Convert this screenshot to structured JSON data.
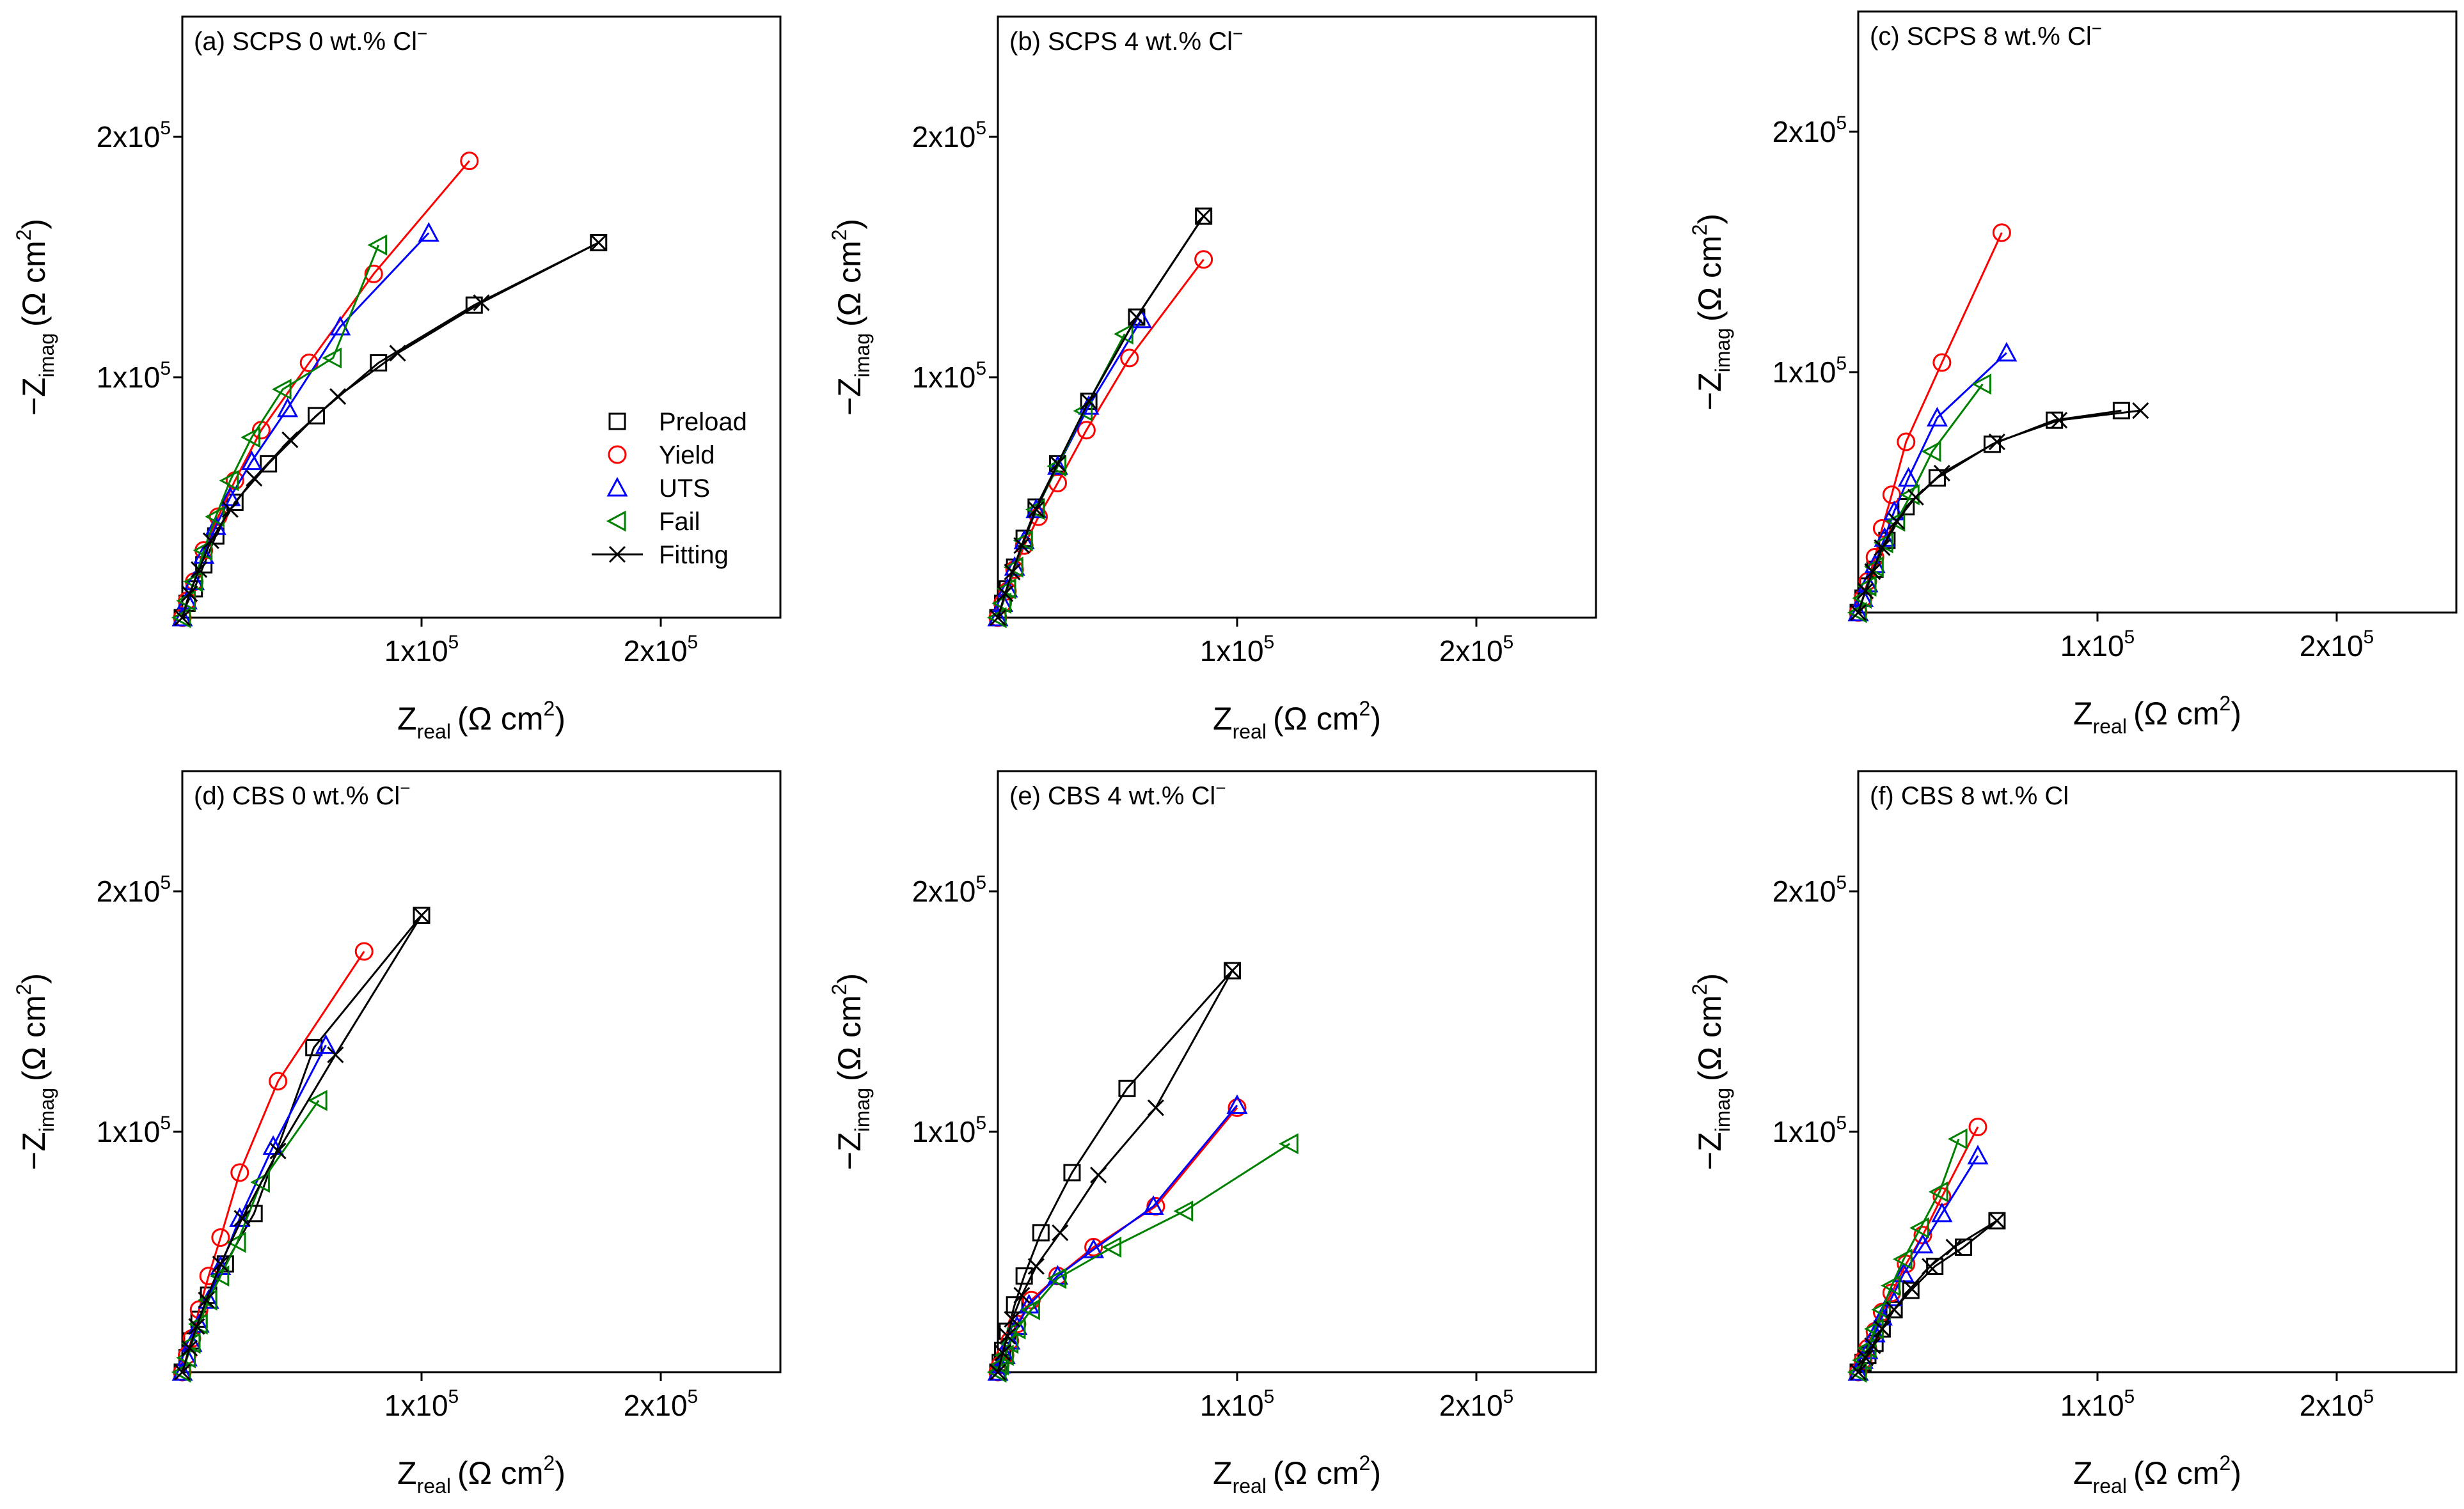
{
  "colors": {
    "Preload": "#000000",
    "Yield": "#ff0000",
    "UTS": "#0000ff",
    "Fail": "#008000",
    "Fitting": "#000000"
  },
  "legend": [
    "Preload",
    "Yield",
    "UTS",
    "Fail",
    "Fitting"
  ],
  "axis_labels": {
    "x": {
      "symbol": "Z",
      "sub": "real",
      "unit": "(Ω cm",
      "sup": "2",
      "close": ")"
    },
    "y": {
      "symbol": "−Z",
      "sub": "imag",
      "unit": "(Ω cm",
      "sup": "2",
      "close": ")"
    }
  },
  "tick_labels": {
    "1e5": {
      "base": "1x10",
      "exp": "5"
    },
    "2e5": {
      "base": "2x10",
      "exp": "5"
    }
  },
  "chart_data": [
    {
      "type": "scatter",
      "title": "(a) SCPS 0 wt.% Cl",
      "title_sup": "−",
      "xlim": [
        0,
        250000
      ],
      "ylim": [
        0,
        250000
      ],
      "show_legend": true,
      "legend_position": "right",
      "series": [
        {
          "name": "Preload",
          "x": [
            0,
            2000,
            5000,
            9000,
            14000,
            22000,
            36000,
            56000,
            82000,
            122000,
            174000
          ],
          "y": [
            0,
            6000,
            12000,
            22000,
            34000,
            48000,
            64000,
            84000,
            106000,
            130000,
            156000
          ]
        },
        {
          "name": "Yield",
          "x": [
            0,
            2000,
            5000,
            9000,
            15000,
            22000,
            33000,
            53000,
            80000,
            120000
          ],
          "y": [
            0,
            7000,
            15000,
            28000,
            42000,
            57000,
            78000,
            106000,
            143000,
            190000
          ]
        },
        {
          "name": "UTS",
          "x": [
            0,
            2000,
            5000,
            9000,
            14000,
            20000,
            29000,
            44000,
            66000,
            103000
          ],
          "y": [
            0,
            7000,
            15000,
            26000,
            38000,
            50000,
            65000,
            87000,
            121000,
            160000
          ]
        },
        {
          "name": "Fail",
          "x": [
            0,
            2000,
            5000,
            9000,
            14000,
            20000,
            29000,
            42000,
            63000,
            82000
          ],
          "y": [
            0,
            7000,
            15000,
            28000,
            42000,
            57000,
            75000,
            95000,
            108000,
            155000
          ]
        },
        {
          "name": "Fitting",
          "x": [
            0,
            3000,
            7000,
            12000,
            20000,
            30000,
            45000,
            65000,
            90000,
            125000,
            174000
          ],
          "y": [
            0,
            10000,
            20000,
            32000,
            45000,
            58000,
            74000,
            92000,
            110000,
            131000,
            156000
          ]
        }
      ]
    },
    {
      "type": "scatter",
      "title": "(b) SCPS 4 wt.% Cl",
      "title_sup": "−",
      "xlim": [
        0,
        250000
      ],
      "ylim": [
        0,
        250000
      ],
      "show_legend": false,
      "series": [
        {
          "name": "Preload",
          "x": [
            0,
            2000,
            4000,
            7000,
            11000,
            16000,
            25000,
            38000,
            58000,
            86000
          ],
          "y": [
            0,
            6000,
            12000,
            21000,
            33000,
            46000,
            64000,
            90000,
            125000,
            167000
          ]
        },
        {
          "name": "Yield",
          "x": [
            0,
            2000,
            4000,
            7000,
            11000,
            17000,
            25000,
            37000,
            55000,
            86000
          ],
          "y": [
            0,
            6000,
            11000,
            20000,
            30000,
            42000,
            56000,
            78000,
            108000,
            149000
          ]
        },
        {
          "name": "UTS",
          "x": [
            0,
            2000,
            4000,
            7000,
            11000,
            16000,
            25000,
            38000,
            60000
          ],
          "y": [
            0,
            6000,
            12000,
            21000,
            32000,
            45000,
            63000,
            88000,
            124000
          ]
        },
        {
          "name": "Fail",
          "x": [
            0,
            2000,
            4000,
            7000,
            11000,
            16000,
            25000,
            36000,
            53000
          ],
          "y": [
            0,
            6000,
            12000,
            21000,
            32000,
            45000,
            63000,
            86000,
            118000
          ]
        },
        {
          "name": "Fitting",
          "x": [
            0,
            3000,
            6000,
            10000,
            16000,
            25000,
            38000,
            58000,
            86000
          ],
          "y": [
            0,
            10000,
            19000,
            30000,
            45000,
            64000,
            90000,
            125000,
            167000
          ]
        }
      ]
    },
    {
      "type": "scatter",
      "title": "(c) SCPS 8 wt.% Cl",
      "title_sup": "−",
      "xlim": [
        0,
        250000
      ],
      "ylim": [
        0,
        250000
      ],
      "show_legend": false,
      "series": [
        {
          "name": "Preload",
          "x": [
            0,
            2000,
            4000,
            7000,
            12000,
            20000,
            33000,
            56000,
            82000,
            110000
          ],
          "y": [
            0,
            6000,
            11000,
            18000,
            30000,
            44000,
            56000,
            70000,
            80000,
            84000
          ]
        },
        {
          "name": "Yield",
          "x": [
            0,
            2000,
            4000,
            7000,
            10000,
            14000,
            20000,
            35000,
            60000
          ],
          "y": [
            0,
            6000,
            13000,
            23000,
            35000,
            49000,
            71000,
            104000,
            158000
          ]
        },
        {
          "name": "UTS",
          "x": [
            0,
            2000,
            4000,
            7000,
            11000,
            15000,
            21000,
            33000,
            62000
          ],
          "y": [
            0,
            6000,
            12000,
            20000,
            31000,
            42000,
            56000,
            81000,
            108000
          ]
        },
        {
          "name": "Fail",
          "x": [
            0,
            2000,
            4000,
            7000,
            11000,
            16000,
            22000,
            31000,
            52000
          ],
          "y": [
            0,
            6000,
            11000,
            19000,
            29000,
            38000,
            49000,
            67000,
            95000
          ]
        },
        {
          "name": "Fitting",
          "x": [
            0,
            3000,
            6000,
            10000,
            16000,
            24000,
            35000,
            58000,
            84000,
            118000
          ],
          "y": [
            0,
            9000,
            17000,
            27000,
            38000,
            48000,
            58000,
            71000,
            80000,
            84000
          ]
        }
      ]
    },
    {
      "type": "scatter",
      "title": "(d) CBS 0 wt.% Cl",
      "title_sup": "−",
      "xlim": [
        0,
        250000
      ],
      "ylim": [
        0,
        250000
      ],
      "show_legend": false,
      "series": [
        {
          "name": "Preload",
          "x": [
            0,
            2000,
            4000,
            7000,
            11000,
            18000,
            30000,
            55000,
            100000
          ],
          "y": [
            0,
            6000,
            13000,
            22000,
            32000,
            45000,
            66000,
            135000,
            190000
          ]
        },
        {
          "name": "Yield",
          "x": [
            0,
            2000,
            4000,
            7000,
            11000,
            16000,
            24000,
            40000,
            76000
          ],
          "y": [
            0,
            7000,
            14000,
            26000,
            40000,
            56000,
            83000,
            121000,
            175000
          ]
        },
        {
          "name": "UTS",
          "x": [
            0,
            2000,
            4000,
            7000,
            11000,
            16000,
            24000,
            38000,
            60000
          ],
          "y": [
            0,
            6000,
            12000,
            20000,
            30000,
            44000,
            64000,
            94000,
            136000
          ]
        },
        {
          "name": "Fail",
          "x": [
            0,
            2000,
            4000,
            7000,
            11000,
            16000,
            23000,
            33000,
            57000
          ],
          "y": [
            0,
            6000,
            12000,
            20000,
            30000,
            40000,
            54000,
            79000,
            113000
          ]
        },
        {
          "name": "Fitting",
          "x": [
            0,
            3000,
            6000,
            10000,
            16000,
            25000,
            40000,
            64000,
            100000
          ],
          "y": [
            0,
            10000,
            19000,
            30000,
            45000,
            64000,
            92000,
            132000,
            190000
          ]
        }
      ]
    },
    {
      "type": "scatter",
      "title": "(e) CBS 4 wt.% Cl",
      "title_sup": "−",
      "xlim": [
        0,
        250000
      ],
      "ylim": [
        0,
        250000
      ],
      "show_legend": false,
      "series": [
        {
          "name": "Preload",
          "x": [
            0,
            1000,
            2000,
            4000,
            7000,
            11000,
            18000,
            31000,
            54000,
            98000
          ],
          "y": [
            0,
            4000,
            9000,
            17000,
            28000,
            40000,
            58000,
            83000,
            118000,
            167000
          ]
        },
        {
          "name": "Yield",
          "x": [
            0,
            1000,
            3000,
            5000,
            8000,
            14000,
            25000,
            40000,
            66000,
            100000
          ],
          "y": [
            0,
            3000,
            7000,
            13000,
            20000,
            30000,
            40000,
            52000,
            69000,
            110000
          ]
        },
        {
          "name": "UTS",
          "x": [
            0,
            1000,
            3000,
            5000,
            8000,
            13000,
            25000,
            40000,
            65000,
            100000
          ],
          "y": [
            0,
            3000,
            7000,
            13000,
            19000,
            28000,
            40000,
            51000,
            69000,
            111000
          ]
        },
        {
          "name": "Fail",
          "x": [
            0,
            1000,
            3000,
            5000,
            8000,
            14000,
            25000,
            48000,
            78000,
            122000
          ],
          "y": [
            0,
            3000,
            7000,
            12000,
            18000,
            26000,
            39000,
            52000,
            67000,
            95000
          ]
        },
        {
          "name": "Fitting",
          "x": [
            0,
            2000,
            4000,
            6000,
            10000,
            16000,
            26000,
            42000,
            66000,
            98000
          ],
          "y": [
            0,
            8000,
            15000,
            22000,
            32000,
            44000,
            58000,
            82000,
            110000,
            167000
          ]
        }
      ]
    },
    {
      "type": "scatter",
      "title": "(f) CBS 8 wt.% Cl",
      "title_sup": "",
      "xlim": [
        0,
        250000
      ],
      "ylim": [
        0,
        250000
      ],
      "show_legend": false,
      "series": [
        {
          "name": "Preload",
          "x": [
            0,
            2000,
            4000,
            7000,
            10000,
            15000,
            22000,
            32000,
            44000,
            58000
          ],
          "y": [
            0,
            4000,
            7000,
            12000,
            18000,
            26000,
            34000,
            44000,
            52000,
            63000
          ]
        },
        {
          "name": "Yield",
          "x": [
            0,
            2000,
            4000,
            7000,
            10000,
            14000,
            20000,
            27000,
            35000,
            50000
          ],
          "y": [
            0,
            5000,
            10000,
            17000,
            25000,
            33000,
            45000,
            57000,
            73000,
            102000
          ]
        },
        {
          "name": "UTS",
          "x": [
            0,
            2000,
            4000,
            7000,
            10000,
            14000,
            19000,
            27000,
            35000,
            50000
          ],
          "y": [
            0,
            5000,
            9000,
            16000,
            23000,
            31000,
            41000,
            53000,
            66000,
            90000
          ]
        },
        {
          "name": "Fail",
          "x": [
            0,
            2000,
            4000,
            7000,
            10000,
            14000,
            19000,
            26000,
            34000,
            42000
          ],
          "y": [
            0,
            5000,
            10000,
            18000,
            26000,
            36000,
            47000,
            60000,
            75000,
            97000
          ]
        },
        {
          "name": "Fitting",
          "x": [
            0,
            3000,
            6000,
            10000,
            15000,
            22000,
            30000,
            40000,
            58000
          ],
          "y": [
            0,
            6000,
            11000,
            18000,
            26000,
            35000,
            44000,
            52000,
            63000
          ]
        }
      ]
    }
  ]
}
